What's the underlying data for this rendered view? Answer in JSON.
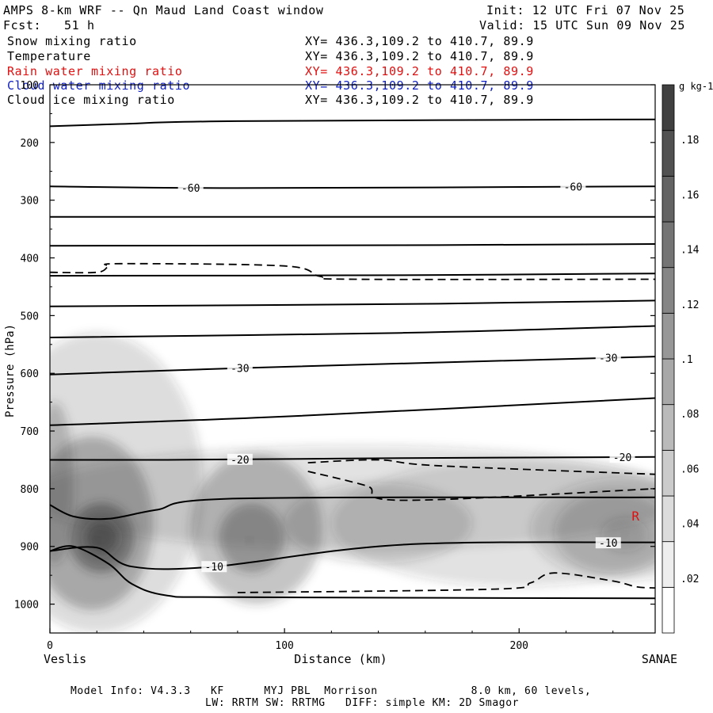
{
  "header": {
    "title": "AMPS 8-km WRF -- Qn Maud Land Coast window",
    "init": "Init: 12 UTC Fri 07 Nov 25",
    "fcst": "Fcst:   51 h",
    "valid": "Valid: 15 UTC Sun 09 Nov 25"
  },
  "fields": [
    {
      "name": "Snow mixing ratio",
      "xy": "XY= 436.3,109.2 to 410.7, 89.9",
      "color": "#000000"
    },
    {
      "name": "Temperature",
      "xy": "XY= 436.3,109.2 to 410.7, 89.9",
      "color": "#000000"
    },
    {
      "name": "Rain water mixing ratio",
      "xy": "XY= 436.3,109.2 to 410.7, 89.9",
      "color": "#e01010"
    },
    {
      "name": "Cloud water mixing ratio",
      "xy": "XY= 436.3,109.2 to 410.7, 89.9",
      "color": "#1020c0"
    },
    {
      "name": "Cloud ice mixing ratio",
      "xy": "XY= 436.3,109.2 to 410.7, 89.9",
      "color": "#000000"
    }
  ],
  "footer": {
    "line1": "Model Info: V4.3.3   KF      MYJ PBL  Morrison              8.0 km, 60 levels,",
    "line2": "LW: RRTM SW: RRTMG   DIFF: simple KM: 2D Smagor"
  },
  "chart_data": {
    "type": "cross-section",
    "title": "AMPS 8-km WRF -- Qn Maud Land Coast window",
    "xlabel": "Distance (km)",
    "ylabel": "Pressure (hPa)",
    "xlim": [
      0,
      258
    ],
    "ylim": [
      1050,
      100
    ],
    "x_ticks": [
      0,
      100,
      200
    ],
    "y_ticks": [
      1000,
      900,
      800,
      700,
      600,
      500,
      400,
      300,
      200,
      100
    ],
    "x_end_labels": {
      "left": "Veslis",
      "right": "SANAE"
    },
    "colorbar": {
      "units": "g kg-1",
      "ticks": [
        ".02",
        ".04",
        ".06",
        ".08",
        ".1",
        ".12",
        ".14",
        ".16",
        ".18"
      ],
      "range": [
        0,
        0.2
      ],
      "levels": 12
    },
    "temperature_contours": [
      {
        "x": [
          0,
          30,
          80,
          258
        ],
        "p": [
          172,
          168,
          163,
          160
        ]
      },
      {
        "label": "-60",
        "label_x": [
          60,
          223
        ],
        "x": [
          0,
          80,
          258
        ],
        "p": [
          276,
          279,
          276
        ]
      },
      {
        "x": [
          0,
          258
        ],
        "p": [
          329,
          329
        ]
      },
      {
        "x": [
          0,
          150,
          258
        ],
        "p": [
          379,
          378,
          376
        ]
      },
      {
        "x": [
          0,
          150,
          258
        ],
        "p": [
          431,
          430,
          427
        ]
      },
      {
        "x": [
          0,
          150,
          258
        ],
        "p": [
          484,
          480,
          474
        ]
      },
      {
        "x": [
          0,
          150,
          258
        ],
        "p": [
          538,
          530,
          518
        ]
      },
      {
        "label": "-30",
        "label_x": [
          81,
          238
        ],
        "x": [
          0,
          80,
          258
        ],
        "p": [
          602,
          591,
          571
        ]
      },
      {
        "x": [
          0,
          100,
          258
        ],
        "p": [
          690,
          675,
          643
        ]
      },
      {
        "label": "-20",
        "label_x": [
          81,
          244
        ],
        "x": [
          0,
          50,
          150,
          258
        ],
        "p": [
          750,
          750,
          747,
          745
        ]
      },
      {
        "x": [
          0,
          10,
          25,
          45,
          80,
          258
        ],
        "p": [
          828,
          848,
          852,
          837,
          817,
          815
        ]
      },
      {
        "label": "-10",
        "label_x": [
          70,
          238
        ],
        "x": [
          0,
          20,
          35,
          70,
          150,
          258
        ],
        "p": [
          908,
          902,
          935,
          935,
          897,
          893
        ]
      },
      {
        "x": [
          0,
          10,
          25,
          35,
          50,
          80,
          258
        ],
        "p": [
          908,
          900,
          930,
          965,
          985,
          988,
          990
        ]
      }
    ],
    "cloud_ice_dashed_contours": [
      {
        "x": [
          0,
          20,
          25,
          30,
          100,
          115,
          130,
          258
        ],
        "p": [
          425,
          425,
          415,
          410,
          414,
          432,
          437,
          437
        ]
      },
      {
        "x": [
          110,
          140,
          165,
          258
        ],
        "p": [
          755,
          750,
          760,
          775
        ]
      },
      {
        "x": [
          110,
          135,
          150,
          258
        ],
        "p": [
          770,
          795,
          820,
          800
        ]
      },
      {
        "x": [
          80,
          190,
          205,
          215,
          240,
          250,
          258
        ],
        "p": [
          980,
          974,
          963,
          946,
          960,
          970,
          972
        ]
      }
    ],
    "snow_maxima": [
      {
        "x": 20,
        "p": 890,
        "value": 0.18
      },
      {
        "x": 85,
        "p": 890,
        "value": 0.14
      },
      {
        "x": 245,
        "p": 880,
        "value": 0.08
      }
    ],
    "rain_label": {
      "text": "R",
      "x": 248,
      "p": 855
    }
  }
}
